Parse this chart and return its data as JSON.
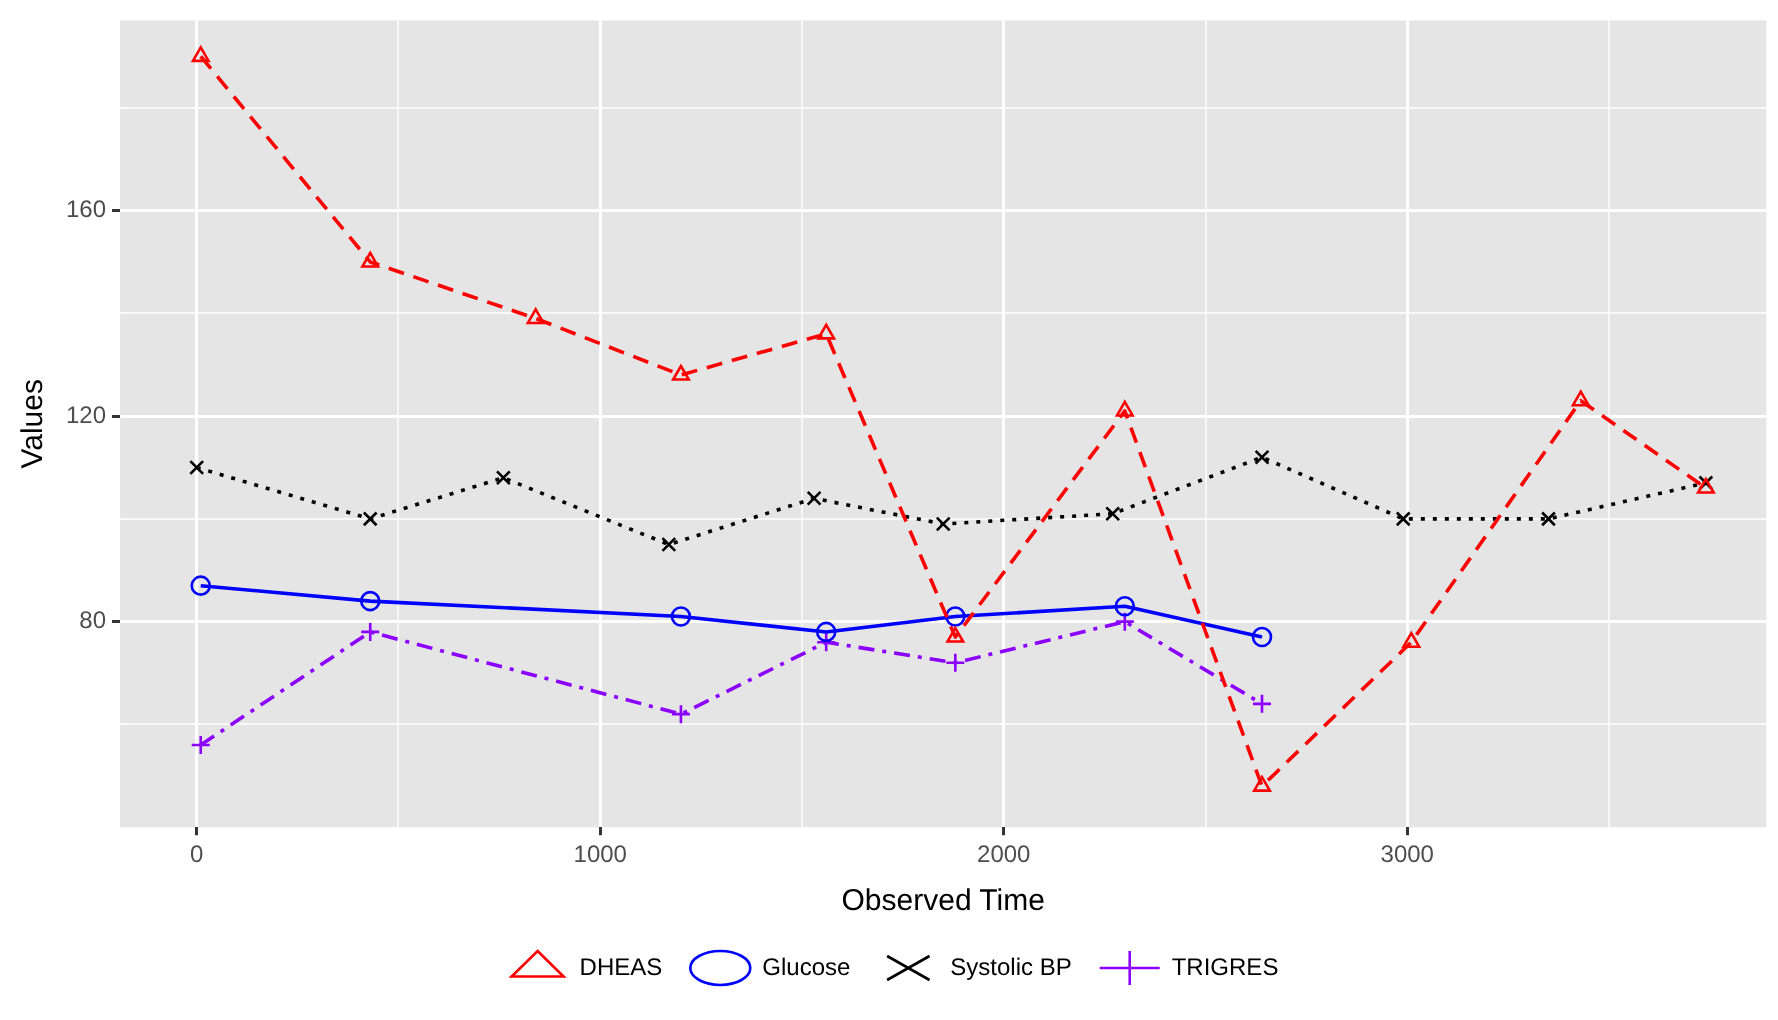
{
  "chart_data": {
    "type": "line",
    "xlabel": "Observed Time",
    "ylabel": "Values",
    "xlim": [
      -190,
      3890
    ],
    "ylim": [
      40,
      197
    ],
    "xticks": [
      0,
      {
        "value": 500,
        "label": null
      },
      1000,
      {
        "value": 1500,
        "label": null
      },
      2000,
      {
        "value": 2500,
        "label": null
      },
      3000,
      {
        "value": 3500,
        "label": null
      }
    ],
    "yticks": [
      {
        "value": 60,
        "label": null
      },
      80,
      {
        "value": 100,
        "label": null
      },
      120,
      {
        "value": 140,
        "label": null
      },
      160,
      {
        "value": 180,
        "label": null
      }
    ],
    "grid": true,
    "legend": "bottom",
    "series": [
      {
        "name": "DHEAS",
        "color": "#ff0000",
        "marker": "triangle",
        "line_style": "dashed",
        "x": [
          10,
          430,
          840,
          1200,
          1560,
          1880,
          2300,
          2640,
          3010,
          3430,
          3740
        ],
        "values": [
          190,
          150,
          139,
          128,
          136,
          77,
          121,
          48,
          76,
          123,
          106
        ]
      },
      {
        "name": "Glucose",
        "color": "#0000ff",
        "marker": "circle",
        "line_style": "solid",
        "x": [
          10,
          430,
          1200,
          1560,
          1880,
          2300,
          2640
        ],
        "values": [
          87,
          84,
          81,
          78,
          81,
          83,
          77
        ]
      },
      {
        "name": "Systolic BP",
        "color": "#000000",
        "marker": "cross",
        "line_style": "dotted",
        "x": [
          0,
          430,
          760,
          1170,
          1530,
          1850,
          2270,
          2640,
          2990,
          3350,
          3740
        ],
        "values": [
          110,
          100,
          108,
          95,
          104,
          99,
          101,
          112,
          100,
          100,
          107
        ]
      },
      {
        "name": "TRIGRES",
        "color": "#8b00ff",
        "marker": "plus",
        "line_style": "dashdot",
        "x": [
          10,
          430,
          1200,
          1560,
          1880,
          2300,
          2640
        ],
        "values": [
          56,
          78,
          62,
          76,
          72,
          80,
          64
        ]
      }
    ]
  }
}
